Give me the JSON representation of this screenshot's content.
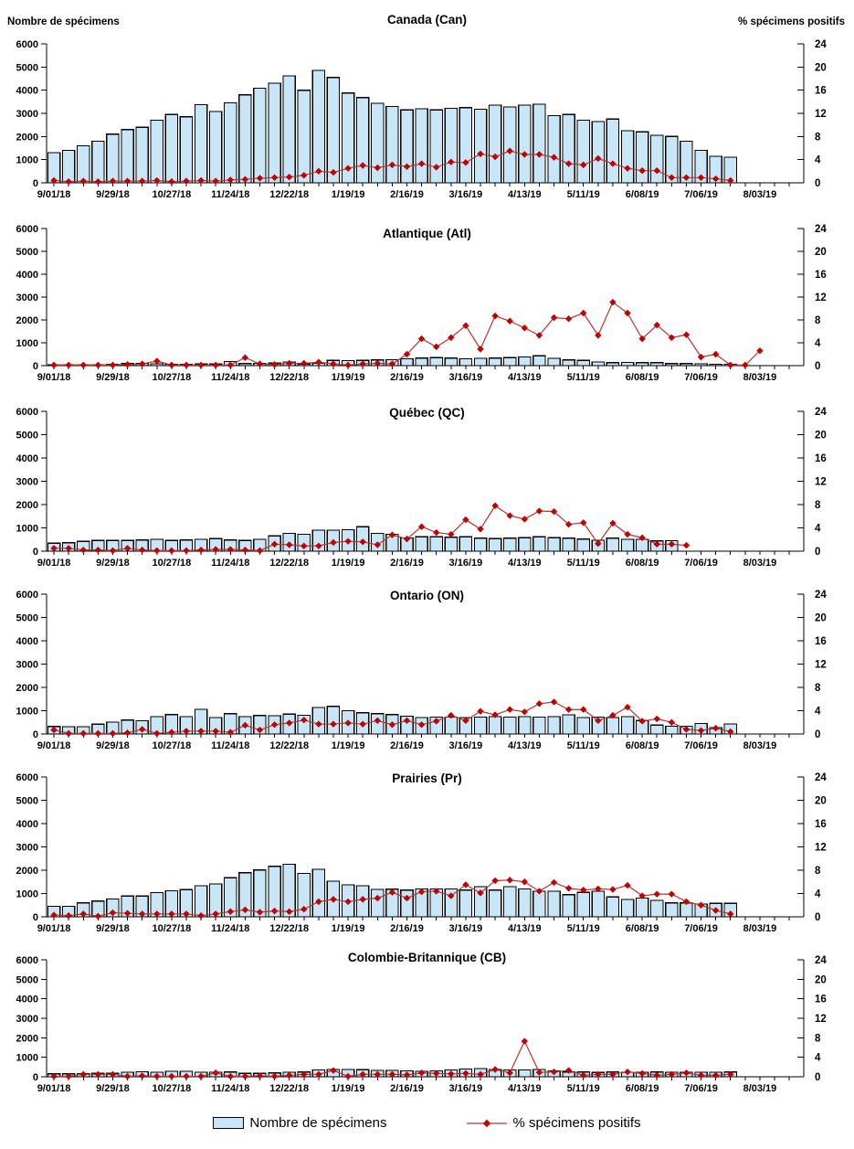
{
  "header": {
    "left_axis_title": "Nombre de spécimens",
    "right_axis_title": "% spécimens positifs"
  },
  "legend": {
    "bars_label": "Nombre de spécimens",
    "line_label": "% spécimens positifs"
  },
  "colors": {
    "bar_fill": "#C9E6F8",
    "bar_border": "#000000",
    "line": "#B53532",
    "marker": "#C00000",
    "axis": "#000000"
  },
  "chart_data": {
    "type": "combo_bar_line_small_multiples",
    "description": "Weekly number of specimens (bars, left axis) and % positive specimens (red diamond line, right axis) for Canada and five regions, influenza surveillance season 2018-19",
    "weeks": 49,
    "x_label_every": 4,
    "x_tick_labels": [
      "9/01/18",
      "9/29/18",
      "10/27/18",
      "11/24/18",
      "12/22/18",
      "1/19/19",
      "2/16/19",
      "3/16/19",
      "4/13/19",
      "5/11/19",
      "6/08/19",
      "7/06/19",
      "8/03/19"
    ],
    "y_left": {
      "title": "Nombre de spécimens",
      "min": 0,
      "max": 6000,
      "ticks": [
        0,
        1000,
        2000,
        3000,
        4000,
        5000,
        6000
      ]
    },
    "y_right": {
      "title": "% spécimens positifs",
      "min": 0,
      "max": 24,
      "ticks": [
        0,
        4,
        8,
        12,
        16,
        20,
        24
      ]
    },
    "series_names": {
      "bars": "Nombre de spécimens",
      "line": "% spécimens positifs"
    },
    "charts": [
      {
        "title": "Canada (Can)",
        "specimens": [
          1300,
          1400,
          1600,
          1800,
          2100,
          2300,
          2400,
          2700,
          2950,
          2850,
          3380,
          3080,
          3450,
          3800,
          4080,
          4300,
          4620,
          4000,
          4850,
          4550,
          3880,
          3680,
          3430,
          3300,
          3150,
          3200,
          3150,
          3220,
          3250,
          3180,
          3350,
          3280,
          3350,
          3400,
          2900,
          2950,
          2700,
          2650,
          2750,
          2250,
          2200,
          2050,
          2000,
          1800,
          1400,
          1150,
          1100,
          null,
          null
        ],
        "pct_positifs": [
          0.4,
          0.2,
          0.3,
          0.2,
          0.3,
          0.3,
          0.3,
          0.4,
          0.2,
          0.3,
          0.4,
          0.3,
          0.5,
          0.6,
          0.8,
          0.9,
          1.0,
          1.3,
          2.0,
          1.8,
          2.5,
          3.0,
          2.6,
          3.1,
          2.8,
          3.3,
          2.7,
          3.6,
          3.5,
          5.0,
          4.5,
          5.5,
          4.9,
          4.9,
          4.4,
          3.3,
          3.1,
          4.2,
          3.3,
          2.5,
          2.1,
          2.1,
          0.9,
          0.9,
          0.9,
          0.7,
          0.4,
          null,
          null
        ]
      },
      {
        "title": "Atlantique (Atl)",
        "specimens": [
          30,
          40,
          30,
          40,
          50,
          90,
          100,
          80,
          60,
          60,
          70,
          70,
          180,
          90,
          100,
          110,
          160,
          70,
          100,
          230,
          220,
          230,
          250,
          260,
          300,
          330,
          350,
          330,
          300,
          320,
          330,
          350,
          380,
          430,
          320,
          250,
          230,
          160,
          130,
          140,
          130,
          130,
          90,
          90,
          80,
          60,
          60,
          null,
          null
        ],
        "pct_positifs": [
          0.1,
          0.1,
          0.1,
          0.1,
          0.1,
          0.2,
          0.3,
          0.8,
          0.1,
          0.1,
          0.1,
          0.1,
          0.1,
          1.4,
          0.3,
          0.2,
          0.4,
          0.4,
          0.6,
          0.3,
          0.1,
          0.3,
          0.4,
          0.3,
          2.0,
          4.7,
          3.3,
          4.9,
          7.0,
          2.9,
          8.7,
          7.8,
          6.6,
          5.3,
          8.4,
          8.2,
          9.2,
          5.3,
          11.1,
          9.2,
          4.7,
          7.1,
          4.9,
          5.4,
          1.5,
          2.0,
          0.1,
          0.1,
          2.6
        ]
      },
      {
        "title": "Québec (QC)",
        "specimens": [
          340,
          360,
          420,
          460,
          460,
          460,
          480,
          505,
          460,
          480,
          505,
          540,
          480,
          460,
          505,
          660,
          770,
          720,
          900,
          900,
          925,
          1050,
          760,
          720,
          570,
          620,
          620,
          600,
          620,
          560,
          540,
          560,
          580,
          620,
          580,
          560,
          520,
          470,
          560,
          510,
          510,
          440,
          450,
          null,
          null,
          null,
          null,
          null,
          null
        ],
        "pct_positifs": [
          0.5,
          0.5,
          0.2,
          0.2,
          0.1,
          0.5,
          0.2,
          0.1,
          0.1,
          0.1,
          0.2,
          0.3,
          0.3,
          0.2,
          0.1,
          1.2,
          1.1,
          0.9,
          0.9,
          1.5,
          1.7,
          1.6,
          1.1,
          2.8,
          2.1,
          4.2,
          3.2,
          2.9,
          5.4,
          3.8,
          7.8,
          6.1,
          5.5,
          6.9,
          6.8,
          4.6,
          4.9,
          1.3,
          4.8,
          2.9,
          2.3,
          1.2,
          1.2,
          1.0,
          null,
          null,
          null,
          null,
          null
        ]
      },
      {
        "title": "Ontario (ON)",
        "specimens": [
          325,
          310,
          310,
          420,
          505,
          600,
          565,
          745,
          830,
          745,
          1060,
          700,
          870,
          745,
          795,
          780,
          855,
          805,
          1140,
          1190,
          1000,
          915,
          870,
          830,
          760,
          700,
          720,
          730,
          700,
          730,
          740,
          730,
          740,
          720,
          750,
          820,
          700,
          730,
          700,
          740,
          580,
          380,
          330,
          330,
          450,
          280,
          430,
          null,
          null
        ],
        "pct_positifs": [
          0.7,
          0.1,
          0.1,
          0.1,
          0.1,
          0.2,
          0.8,
          0.1,
          0.3,
          0.5,
          0.5,
          0.5,
          0.3,
          1.5,
          0.7,
          1.6,
          1.9,
          2.4,
          1.7,
          1.7,
          1.9,
          1.7,
          2.3,
          1.6,
          2.3,
          1.6,
          2.2,
          3.2,
          2.3,
          3.9,
          3.3,
          4.2,
          3.8,
          5.2,
          5.5,
          4.2,
          4.2,
          2.3,
          3.2,
          4.6,
          2.2,
          2.6,
          2.0,
          0.8,
          0.6,
          1.0,
          0.4,
          null,
          null
        ]
      },
      {
        "title": "Prairies (Pr)",
        "specimens": [
          450,
          450,
          600,
          680,
          760,
          890,
          890,
          1040,
          1120,
          1170,
          1330,
          1410,
          1680,
          1890,
          2010,
          2170,
          2250,
          1860,
          2040,
          1530,
          1370,
          1330,
          1180,
          1190,
          1150,
          1200,
          1200,
          1200,
          1150,
          1300,
          1150,
          1300,
          1200,
          1100,
          1100,
          950,
          1050,
          1100,
          850,
          750,
          800,
          700,
          600,
          600,
          550,
          580,
          580,
          null,
          null
        ],
        "pct_positifs": [
          0.3,
          0.2,
          0.5,
          0.1,
          0.7,
          0.6,
          0.5,
          0.5,
          0.5,
          0.5,
          0.2,
          0.5,
          0.9,
          1.2,
          0.8,
          1.0,
          0.9,
          1.3,
          2.6,
          3.0,
          2.6,
          3.0,
          3.2,
          4.2,
          3.2,
          4.3,
          4.4,
          3.6,
          5.5,
          4.1,
          6.2,
          6.3,
          6.0,
          4.4,
          5.9,
          4.9,
          4.6,
          4.8,
          4.7,
          5.4,
          3.6,
          3.9,
          3.9,
          2.6,
          2.0,
          1.1,
          0.5,
          null,
          null
        ]
      },
      {
        "title": "Colombie-Britannique (CB)",
        "specimens": [
          150,
          150,
          160,
          180,
          180,
          230,
          260,
          230,
          280,
          280,
          230,
          230,
          250,
          180,
          180,
          200,
          230,
          250,
          350,
          380,
          380,
          360,
          330,
          330,
          300,
          280,
          300,
          350,
          400,
          420,
          380,
          350,
          350,
          380,
          300,
          250,
          250,
          220,
          250,
          230,
          230,
          250,
          230,
          230,
          230,
          230,
          250,
          null,
          null
        ],
        "pct_positifs": [
          0.1,
          0.1,
          0.5,
          0.5,
          0.5,
          0.1,
          0.2,
          0.1,
          0.1,
          0.1,
          0.1,
          0.8,
          0.1,
          0.1,
          0.2,
          0.1,
          0.3,
          0.5,
          0.5,
          1.3,
          0.1,
          0.5,
          0.5,
          0.5,
          0.4,
          0.8,
          0.7,
          0.6,
          0.7,
          0.5,
          1.5,
          0.8,
          7.3,
          0.9,
          1.0,
          1.3,
          0.3,
          0.5,
          0.5,
          1.0,
          0.7,
          0.3,
          0.5,
          0.8,
          0.3,
          0.3,
          0.5,
          null,
          null
        ]
      }
    ]
  }
}
